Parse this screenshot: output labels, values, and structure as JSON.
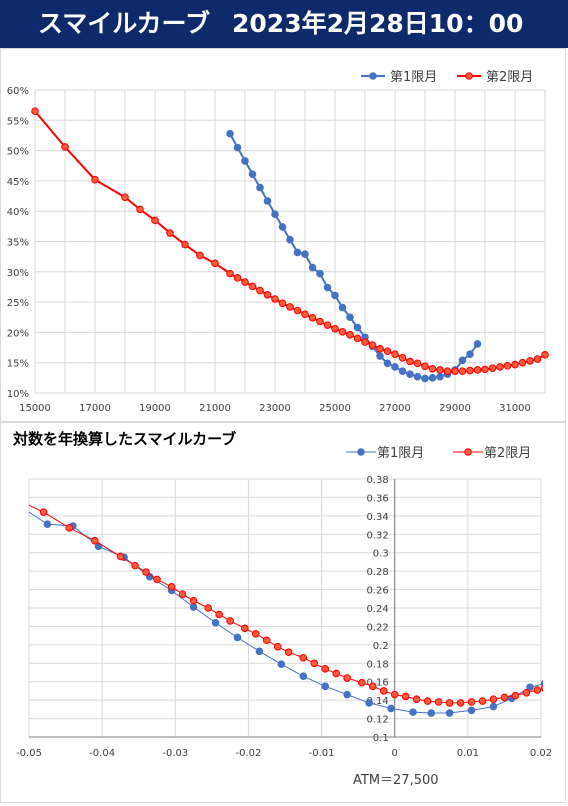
{
  "header": {
    "title": "スマイルカーブ",
    "date": "2023年2月28日10：00"
  },
  "colors": {
    "series1": "#4472c4",
    "series2": "#ff0000",
    "series2_marker": "#ff5a3c",
    "header_bg": "#0f2a6a"
  },
  "chart_data": [
    {
      "type": "line",
      "title": "",
      "legend": "top-right",
      "grid": true,
      "xlim": [
        15000,
        32000
      ],
      "ylim": [
        10,
        60
      ],
      "x_ticks": [
        "15000",
        "17000",
        "19000",
        "21000",
        "23000",
        "25000",
        "27000",
        "29000",
        "31000"
      ],
      "y_ticks": [
        "10%",
        "15%",
        "20%",
        "25%",
        "30%",
        "35%",
        "40%",
        "45%",
        "50%",
        "55%",
        "60%"
      ],
      "series": [
        {
          "name": "第1限月",
          "points": [
            [
              21500,
              52.8
            ],
            [
              21750,
              50.5
            ],
            [
              22000,
              48.3
            ],
            [
              22250,
              46.1
            ],
            [
              22500,
              43.9
            ],
            [
              22750,
              41.7
            ],
            [
              23000,
              39.5
            ],
            [
              23250,
              37.4
            ],
            [
              23500,
              35.3
            ],
            [
              23750,
              33.2
            ],
            [
              24000,
              32.9
            ],
            [
              24250,
              30.7
            ],
            [
              24500,
              29.7
            ],
            [
              24750,
              27.4
            ],
            [
              25000,
              26.1
            ],
            [
              25250,
              24.1
            ],
            [
              25500,
              22.5
            ],
            [
              25750,
              20.8
            ],
            [
              26000,
              19.2
            ],
            [
              26250,
              17.7
            ],
            [
              26500,
              16.1
            ],
            [
              26750,
              14.9
            ],
            [
              27000,
              14.3
            ],
            [
              27250,
              13.6
            ],
            [
              27500,
              13.1
            ],
            [
              27750,
              12.7
            ],
            [
              28000,
              12.4
            ],
            [
              28250,
              12.5
            ],
            [
              28500,
              12.7
            ],
            [
              28750,
              13.1
            ],
            [
              29000,
              13.8
            ],
            [
              29250,
              15.4
            ],
            [
              29500,
              16.4
            ],
            [
              29750,
              18.1
            ]
          ]
        },
        {
          "name": "第2限月",
          "points": [
            [
              15000,
              56.5
            ],
            [
              16000,
              50.6
            ],
            [
              17000,
              45.2
            ],
            [
              18000,
              42.3
            ],
            [
              18500,
              40.3
            ],
            [
              19000,
              38.5
            ],
            [
              19500,
              36.4
            ],
            [
              20000,
              34.5
            ],
            [
              20500,
              32.7
            ],
            [
              21000,
              31.4
            ],
            [
              21500,
              29.7
            ],
            [
              21750,
              29.0
            ],
            [
              22000,
              28.3
            ],
            [
              22250,
              27.6
            ],
            [
              22500,
              26.9
            ],
            [
              22750,
              26.2
            ],
            [
              23000,
              25.5
            ],
            [
              23250,
              24.8
            ],
            [
              23500,
              24.2
            ],
            [
              23750,
              23.6
            ],
            [
              24000,
              23.0
            ],
            [
              24250,
              22.4
            ],
            [
              24500,
              21.8
            ],
            [
              24750,
              21.2
            ],
            [
              25000,
              20.6
            ],
            [
              25250,
              20.1
            ],
            [
              25500,
              19.6
            ],
            [
              25750,
              19.0
            ],
            [
              26000,
              18.4
            ],
            [
              26250,
              17.9
            ],
            [
              26500,
              17.3
            ],
            [
              26750,
              16.9
            ],
            [
              27000,
              16.4
            ],
            [
              27250,
              15.8
            ],
            [
              27500,
              15.2
            ],
            [
              27750,
              14.9
            ],
            [
              28000,
              14.4
            ],
            [
              28250,
              14.0
            ],
            [
              28500,
              13.8
            ],
            [
              28750,
              13.6
            ],
            [
              29000,
              13.6
            ],
            [
              29250,
              13.6
            ],
            [
              29500,
              13.7
            ],
            [
              29750,
              13.8
            ],
            [
              30000,
              13.9
            ],
            [
              30250,
              14.1
            ],
            [
              30500,
              14.3
            ],
            [
              30750,
              14.5
            ],
            [
              31000,
              14.7
            ],
            [
              31250,
              15.0
            ],
            [
              31500,
              15.3
            ],
            [
              31750,
              15.6
            ],
            [
              32000,
              16.3
            ]
          ]
        }
      ]
    },
    {
      "type": "line",
      "title": "対数を年換算したスマイルカーブ",
      "legend": "top-right",
      "grid": true,
      "xlim": [
        -0.05,
        0.02
      ],
      "ylim": [
        0.1,
        0.38
      ],
      "x_ticks": [
        "-0.05",
        "-0.04",
        "-0.03",
        "-0.02",
        "-0.01",
        "0",
        "0.01",
        "0.02"
      ],
      "y_ticks": [
        "0.1",
        "0.12",
        "0.14",
        "0.16",
        "0.18",
        "0.2",
        "0.22",
        "0.24",
        "0.26",
        "0.28",
        "0.3",
        "0.32",
        "0.34",
        "0.36",
        "0.38"
      ],
      "annotation": "ATM＝27,500",
      "series": [
        {
          "name": "第1限月",
          "points": [
            [
              -0.0515,
              0.352
            ],
            [
              -0.0475,
              0.331
            ],
            [
              -0.044,
              0.329
            ],
            [
              -0.0405,
              0.307
            ],
            [
              -0.037,
              0.295
            ],
            [
              -0.0335,
              0.274
            ],
            [
              -0.0305,
              0.259
            ],
            [
              -0.0275,
              0.241
            ],
            [
              -0.0245,
              0.224
            ],
            [
              -0.0215,
              0.208
            ],
            [
              -0.0185,
              0.193
            ],
            [
              -0.0155,
              0.179
            ],
            [
              -0.0125,
              0.166
            ],
            [
              -0.0095,
              0.155
            ],
            [
              -0.0065,
              0.146
            ],
            [
              -0.0035,
              0.137
            ],
            [
              -0.0005,
              0.131
            ],
            [
              0.0025,
              0.127
            ],
            [
              0.005,
              0.126
            ],
            [
              0.0075,
              0.126
            ],
            [
              0.0105,
              0.129
            ],
            [
              0.0135,
              0.133
            ],
            [
              0.016,
              0.142
            ],
            [
              0.0185,
              0.154
            ],
            [
              0.0205,
              0.158
            ]
          ]
        },
        {
          "name": "第2限月",
          "points": [
            [
              -0.0515,
              0.357
            ],
            [
              -0.048,
              0.344
            ],
            [
              -0.0445,
              0.327
            ],
            [
              -0.041,
              0.313
            ],
            [
              -0.0375,
              0.296
            ],
            [
              -0.0355,
              0.286
            ],
            [
              -0.034,
              0.279
            ],
            [
              -0.0325,
              0.271
            ],
            [
              -0.0305,
              0.263
            ],
            [
              -0.029,
              0.255
            ],
            [
              -0.0275,
              0.248
            ],
            [
              -0.0255,
              0.24
            ],
            [
              -0.024,
              0.233
            ],
            [
              -0.0225,
              0.226
            ],
            [
              -0.0205,
              0.218
            ],
            [
              -0.019,
              0.212
            ],
            [
              -0.0175,
              0.205
            ],
            [
              -0.016,
              0.198
            ],
            [
              -0.0145,
              0.192
            ],
            [
              -0.0125,
              0.186
            ],
            [
              -0.011,
              0.18
            ],
            [
              -0.0095,
              0.174
            ],
            [
              -0.008,
              0.169
            ],
            [
              -0.0065,
              0.164
            ],
            [
              -0.0045,
              0.159
            ],
            [
              -0.003,
              0.155
            ],
            [
              -0.0015,
              0.15
            ],
            [
              0.0,
              0.146
            ],
            [
              0.0015,
              0.144
            ],
            [
              0.003,
              0.141
            ],
            [
              0.0045,
              0.139
            ],
            [
              0.006,
              0.138
            ],
            [
              0.0075,
              0.137
            ],
            [
              0.009,
              0.137
            ],
            [
              0.0105,
              0.138
            ],
            [
              0.012,
              0.139
            ],
            [
              0.0135,
              0.141
            ],
            [
              0.015,
              0.143
            ],
            [
              0.0165,
              0.145
            ],
            [
              0.018,
              0.148
            ],
            [
              0.0195,
              0.151
            ],
            [
              0.0205,
              0.153
            ]
          ]
        }
      ]
    }
  ]
}
